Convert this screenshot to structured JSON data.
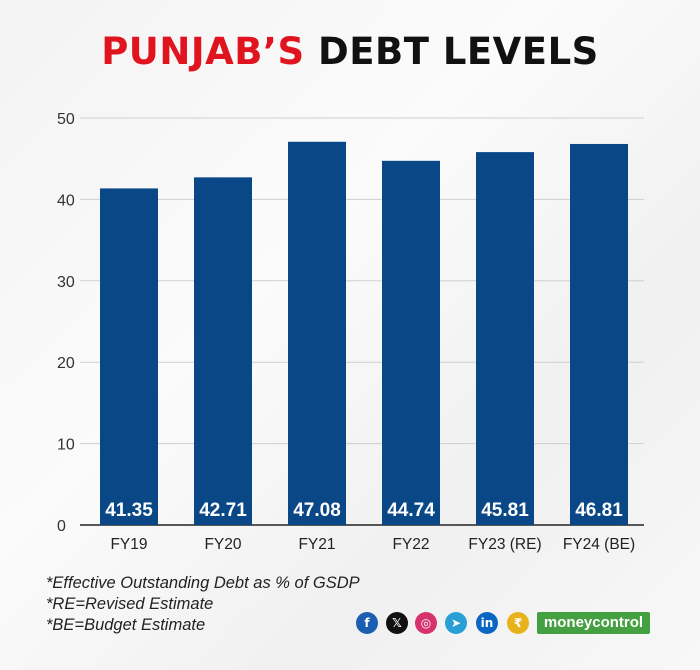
{
  "title": {
    "highlight": "PUNJAB’S",
    "rest": "DEBT LEVELS"
  },
  "chart_data": {
    "type": "bar",
    "categories": [
      "FY19",
      "FY20",
      "FY21",
      "FY22",
      "FY23 (RE)",
      "FY24 (BE)"
    ],
    "values": [
      41.35,
      42.71,
      47.08,
      44.74,
      45.81,
      46.81
    ],
    "value_labels": [
      "41.35",
      "42.71",
      "47.08",
      "44.74",
      "45.81",
      "46.81"
    ],
    "y_ticks": [
      "0",
      "10",
      "20",
      "30",
      "40",
      "50"
    ],
    "ylim": [
      0,
      50
    ],
    "grid": true,
    "bar_color": "#0a4787",
    "label_color": "#ffffff"
  },
  "footnotes": [
    "*Effective Outstanding Debt as % of GSDP",
    "*RE=Revised Estimate",
    "*BE=Budget Estimate"
  ],
  "social_icons": [
    {
      "name": "facebook-icon",
      "glyph": "f",
      "color": "#1c5fb0"
    },
    {
      "name": "x-icon",
      "glyph": "𝕏",
      "color": "#111111"
    },
    {
      "name": "instagram-icon",
      "glyph": "◎",
      "color": "#d6336c"
    },
    {
      "name": "telegram-icon",
      "glyph": "➤",
      "color": "#2a9fd6"
    },
    {
      "name": "linkedin-icon",
      "glyph": "in",
      "color": "#0a66c2"
    },
    {
      "name": "moneycontrol-coin-icon",
      "glyph": "₹",
      "color": "#e8b21c"
    }
  ],
  "brand": "moneycontrol"
}
